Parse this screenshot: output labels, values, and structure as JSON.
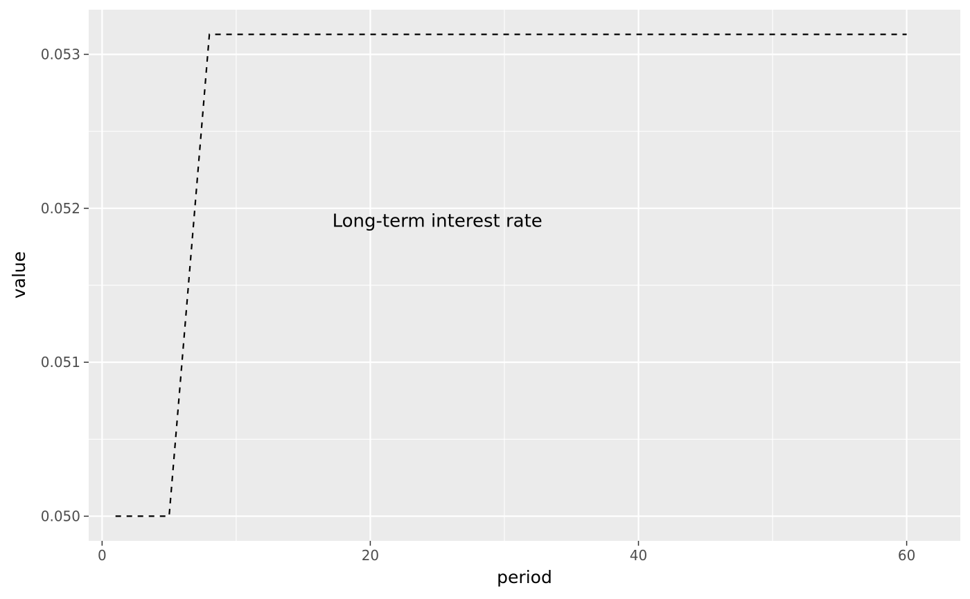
{
  "chart_data": {
    "type": "line",
    "xlabel": "period",
    "ylabel": "value",
    "xlim": [
      -1,
      64
    ],
    "ylim": [
      0.04984,
      0.05329
    ],
    "x_ticks": [
      0,
      20,
      40,
      60
    ],
    "x_tick_labels": [
      "0",
      "20",
      "40",
      "60"
    ],
    "x_minor_ticks": [
      10,
      30,
      50
    ],
    "y_ticks": [
      0.05,
      0.051,
      0.052,
      0.053
    ],
    "y_tick_labels": [
      "0.050",
      "0.051",
      "0.052",
      "0.053"
    ],
    "y_minor_ticks": [
      0.0505,
      0.0515,
      0.0525
    ],
    "grid": true,
    "legend": "none",
    "line_style": "dashed",
    "colors": {
      "panel": "#ebebeb",
      "grid": "#ffffff",
      "line": "#000000",
      "tick_text": "#4d4d4d",
      "tick_mark": "#333333"
    },
    "series": [
      {
        "x": [
          1,
          5,
          8,
          60
        ],
        "values": [
          0.05,
          0.05,
          0.05313,
          0.05313
        ]
      }
    ],
    "annotations": [
      {
        "text": "Long-term interest rate",
        "x": 25,
        "y": 0.05192
      }
    ]
  }
}
